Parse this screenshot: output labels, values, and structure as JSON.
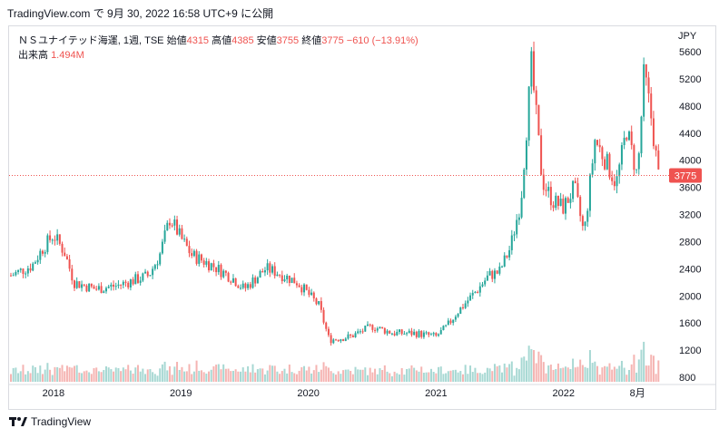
{
  "header": {
    "text": "TradingView.com で 9月 30, 2022 16:58 UTC+9 に公開"
  },
  "legend": {
    "symbol": "ＮＳユナイテッド海運, 1週, TSE",
    "open_label": "始値",
    "open": "4315",
    "high_label": "高値",
    "high": "4385",
    "low_label": "安値",
    "low": "3755",
    "close_label": "終値",
    "close": "3775",
    "change": "−610 (−13.91%)",
    "volume_label": "出来高",
    "volume": "1.494M"
  },
  "currency": "JPY",
  "footer": {
    "brand": "TradingView"
  },
  "colors": {
    "up": "#26a69a",
    "down": "#ef5350",
    "volume_up": "#a7d8d3",
    "volume_down": "#f5b4b2",
    "price_line": "#ef5350"
  },
  "chart_data": {
    "type": "candlestick",
    "y_ticks": [
      "800",
      "1200",
      "1600",
      "2000",
      "2400",
      "2800",
      "3200",
      "3600",
      "4000",
      "4400",
      "4800",
      "5200",
      "5600"
    ],
    "x_ticks": [
      "2018",
      "2019",
      "2020",
      "2021",
      "2022",
      "8月"
    ],
    "ylim": [
      800,
      5600
    ],
    "last_price": "3775",
    "series": [
      {
        "name": "price",
        "points": [
          [
            "2017-09",
            2300
          ],
          [
            "2017-11",
            2450
          ],
          [
            "2017-12",
            2700
          ],
          [
            "2018-01",
            2900
          ],
          [
            "2018-02",
            2650
          ],
          [
            "2018-03",
            2200
          ],
          [
            "2018-05",
            2100
          ],
          [
            "2018-07",
            2150
          ],
          [
            "2018-09",
            2250
          ],
          [
            "2018-10",
            2300
          ],
          [
            "2018-11",
            2600
          ],
          [
            "2018-12",
            3150
          ],
          [
            "2019-01",
            2850
          ],
          [
            "2019-02",
            2600
          ],
          [
            "2019-04",
            2450
          ],
          [
            "2019-06",
            2250
          ],
          [
            "2019-07",
            2100
          ],
          [
            "2019-08",
            2250
          ],
          [
            "2019-09",
            2400
          ],
          [
            "2019-10",
            2350
          ],
          [
            "2019-12",
            2200
          ],
          [
            "2020-02",
            1850
          ],
          [
            "2020-03",
            1350
          ],
          [
            "2020-05",
            1400
          ],
          [
            "2020-07",
            1550
          ],
          [
            "2020-09",
            1450
          ],
          [
            "2020-11",
            1450
          ],
          [
            "2021-01",
            1400
          ],
          [
            "2021-02",
            1550
          ],
          [
            "2021-03",
            1750
          ],
          [
            "2021-05",
            2100
          ],
          [
            "2021-06",
            2300
          ],
          [
            "2021-07",
            2350
          ],
          [
            "2021-08",
            2700
          ],
          [
            "2021-09",
            3400
          ],
          [
            "2021-10",
            5400
          ],
          [
            "2021-11",
            3700
          ],
          [
            "2021-12",
            3400
          ],
          [
            "2022-01",
            3300
          ],
          [
            "2022-02",
            3600
          ],
          [
            "2022-03",
            2900
          ],
          [
            "2022-04",
            4300
          ],
          [
            "2022-05",
            4000
          ],
          [
            "2022-06",
            3650
          ],
          [
            "2022-07",
            4450
          ],
          [
            "2022-08",
            3750
          ],
          [
            "2022-08-20",
            5300
          ],
          [
            "2022-09-10",
            4600
          ],
          [
            "2022-09-30",
            3775
          ]
        ]
      }
    ]
  }
}
